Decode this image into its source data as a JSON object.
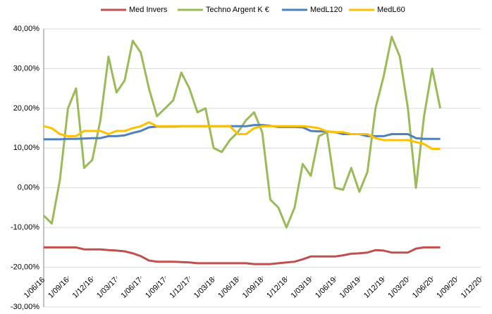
{
  "chart_data": {
    "type": "line",
    "x": [
      "1/06/16",
      "1/07/16",
      "1/08/16",
      "1/09/16",
      "1/10/16",
      "1/11/16",
      "1/12/16",
      "1/01/17",
      "1/02/17",
      "1/03/17",
      "1/04/17",
      "1/05/17",
      "1/06/17",
      "1/07/17",
      "1/08/17",
      "1/09/17",
      "1/10/17",
      "1/11/17",
      "1/12/17",
      "1/01/18",
      "1/02/18",
      "1/03/18",
      "1/04/18",
      "1/05/18",
      "1/06/18",
      "1/07/18",
      "1/08/18",
      "1/09/18",
      "1/10/18",
      "1/11/18",
      "1/12/18",
      "1/01/19",
      "1/02/19",
      "1/03/19",
      "1/04/19",
      "1/05/19",
      "1/06/19",
      "1/07/19",
      "1/08/19",
      "1/09/19",
      "1/10/19",
      "1/11/19",
      "1/12/19",
      "1/01/20",
      "1/02/20",
      "1/03/20",
      "1/04/20",
      "1/05/20",
      "1/06/20",
      "1/07/20"
    ],
    "series": [
      {
        "name": "Med Invers",
        "color": "#c0504d",
        "values": [
          -15,
          -15,
          -15,
          -15,
          -15,
          -15.5,
          -15.5,
          -15.5,
          -15.7,
          -15.8,
          -16,
          -16.5,
          -17.2,
          -18.3,
          -18.6,
          -18.6,
          -18.6,
          -18.7,
          -18.8,
          -19,
          -19,
          -19,
          -19,
          -19,
          -19,
          -19,
          -19.2,
          -19.2,
          -19.2,
          -19,
          -18.8,
          -18.6,
          -18,
          -17.3,
          -17.3,
          -17.3,
          -17.3,
          -17,
          -16.6,
          -16.5,
          -16.3,
          -15.7,
          -15.8,
          -16.3,
          -16.3,
          -16.3,
          -15.3,
          -15,
          -15,
          -15
        ]
      },
      {
        "name": "Techno Argent K €",
        "color": "#9bbb59",
        "values": [
          -7,
          -9,
          2,
          20,
          25,
          5,
          7,
          17,
          33,
          24,
          27,
          37,
          34,
          25,
          18,
          20,
          22,
          29,
          25,
          19,
          20,
          10,
          9,
          12,
          14,
          17,
          19,
          14,
          -3,
          -5,
          -10,
          -5,
          6,
          3,
          13,
          14,
          0,
          -0.5,
          5,
          -1,
          4,
          20,
          28,
          38,
          33,
          20,
          0,
          18,
          30,
          20
        ]
      },
      {
        "name": "MedL120",
        "color": "#4f81bd",
        "values": [
          12.2,
          12.2,
          12.2,
          12.3,
          12.3,
          12.4,
          12.5,
          12.5,
          13,
          13,
          13.2,
          13.8,
          14.3,
          15.2,
          15.4,
          15.4,
          15.4,
          15.5,
          15.5,
          15.5,
          15.5,
          15.5,
          15.5,
          15.5,
          15.5,
          15.5,
          15.8,
          15.8,
          15.6,
          15.3,
          15.3,
          15.3,
          15.2,
          14.3,
          14.2,
          14.2,
          14,
          13.5,
          13.5,
          13.5,
          13,
          13,
          13,
          13.5,
          13.5,
          13.5,
          12.5,
          12.3,
          12.3,
          12.3
        ]
      },
      {
        "name": "MedL60",
        "color": "#ffc000",
        "values": [
          15.5,
          15,
          13.5,
          13,
          13,
          14.3,
          14.3,
          14.3,
          13.5,
          14.3,
          14.3,
          15,
          15.5,
          16.5,
          15.5,
          15.5,
          15.5,
          15.5,
          15.5,
          15.5,
          15.5,
          15.5,
          15.5,
          15.5,
          13.5,
          13.5,
          15,
          15.5,
          15.5,
          15.5,
          15.5,
          15.5,
          15.5,
          15.3,
          15,
          14.2,
          14,
          14,
          13.5,
          13.5,
          13.5,
          12.5,
          12,
          12,
          12,
          12,
          11.5,
          11,
          9.8,
          9.8
        ]
      }
    ],
    "xlim": [
      "1/06/16",
      "1/12/20"
    ],
    "xticks": [
      "1/06/16",
      "1/09/16",
      "1/12/16",
      "1/03/17",
      "1/06/17",
      "1/09/17",
      "1/12/17",
      "1/03/18",
      "1/06/18",
      "1/09/18",
      "1/12/18",
      "1/03/19",
      "1/06/19",
      "1/09/19",
      "1/12/19",
      "1/03/20",
      "1/06/20",
      "1/09/20",
      "1/12/20"
    ],
    "ylim": [
      -30,
      40
    ],
    "yticks": [
      {
        "value": -30,
        "label": "-30,00%"
      },
      {
        "value": -20,
        "label": "-20,00%"
      },
      {
        "value": -10,
        "label": "-10,00%"
      },
      {
        "value": 0,
        "label": "0,00%"
      },
      {
        "value": 10,
        "label": "10,00%"
      },
      {
        "value": 20,
        "label": "20,00%"
      },
      {
        "value": 30,
        "label": "30,00%"
      },
      {
        "value": 40,
        "label": "40,00%"
      }
    ],
    "grid": true,
    "legend": "top"
  }
}
